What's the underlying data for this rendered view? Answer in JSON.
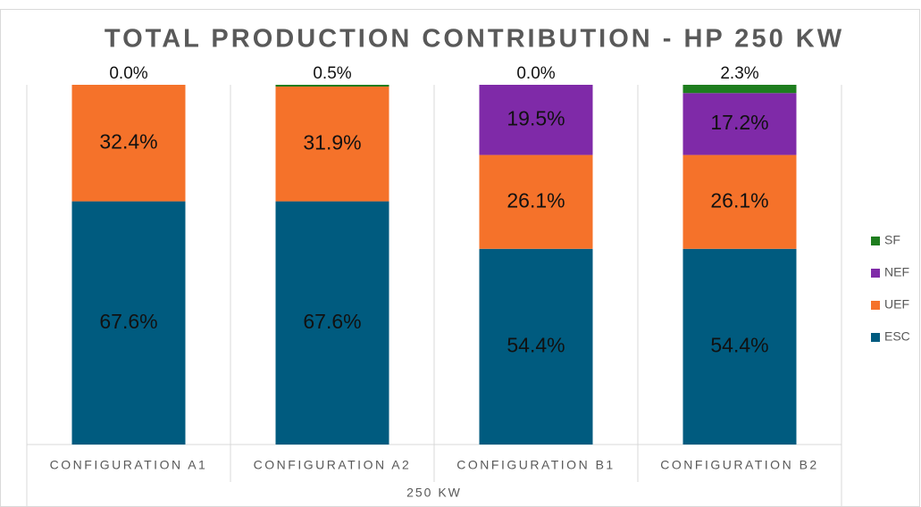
{
  "chart_data": {
    "type": "bar",
    "stacked": true,
    "title": "TOTAL PRODUCTION CONTRIBUTION - HP 250 KW",
    "categories": [
      "CONFIGURATION A1",
      "CONFIGURATION A2",
      "CONFIGURATION B1",
      "CONFIGURATION B2"
    ],
    "x_group_label": "250 KW",
    "series": [
      {
        "name": "ESC",
        "color": "#005b7f",
        "values": [
          67.6,
          67.6,
          54.4,
          54.4
        ],
        "value_labels": [
          "67.6%",
          "67.6%",
          "54.4%",
          "54.4%"
        ]
      },
      {
        "name": "UEF",
        "color": "#f5722a",
        "values": [
          32.4,
          31.9,
          26.1,
          26.1
        ],
        "value_labels": [
          "32.4%",
          "31.9%",
          "26.1%",
          "26.1%"
        ]
      },
      {
        "name": "NEF",
        "color": "#7f2aa8",
        "values": [
          0,
          0,
          19.5,
          17.2
        ],
        "value_labels": [
          null,
          null,
          "19.5%",
          "17.2%"
        ]
      },
      {
        "name": "SF",
        "color": "#1e7d1e",
        "values": [
          0.0,
          0.5,
          0.0,
          2.3
        ],
        "value_labels": [
          "0.0%",
          "0.5%",
          "0.0%",
          "2.3%"
        ]
      }
    ],
    "legend": "right"
  }
}
